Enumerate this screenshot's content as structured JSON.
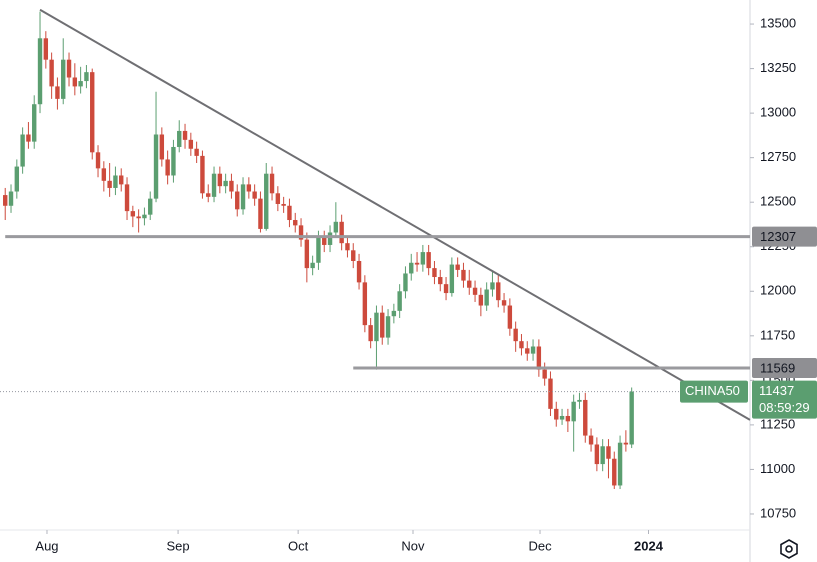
{
  "chart_data": {
    "type": "candlestick",
    "symbol": "CHINA50",
    "countdown": "08:59:29",
    "up_color": "#5b9e70",
    "down_color": "#cd4a3c",
    "open": [
      12540,
      12480,
      12560,
      12700,
      12880,
      12840,
      13050,
      13420,
      13300,
      13150,
      13080,
      13300,
      13200,
      13150,
      13180,
      13230,
      12780,
      12690,
      12620,
      12580,
      12650,
      12600,
      12450,
      12420,
      12410,
      12430,
      12520,
      12880,
      12740,
      12650,
      12810,
      12900,
      12850,
      12800,
      12760,
      12550,
      12530,
      12660,
      12590,
      12620,
      12560,
      12460,
      12600,
      12560,
      12520,
      12350,
      12660,
      12550,
      12490,
      12480,
      12400,
      12370,
      12290,
      12130,
      12160,
      12300,
      12260,
      12330,
      12390,
      12270,
      12230,
      12170,
      12050,
      11810,
      11720,
      11880,
      11740,
      11860,
      11890,
      12000,
      12100,
      12160,
      12150,
      12220,
      12130,
      12080,
      12040,
      11990,
      12150,
      12120,
      12060,
      12020,
      11980,
      11920,
      12010,
      12050,
      11950,
      11920,
      11790,
      11720,
      11680,
      11650,
      11690,
      11560,
      11510,
      11340,
      11280,
      11300,
      11270,
      11380,
      11390,
      11190,
      11140,
      11030,
      11130,
      11060,
      10910,
      11150,
      11140
    ],
    "high": [
      12580,
      12600,
      12740,
      12920,
      12950,
      13100,
      13570,
      13460,
      13340,
      13200,
      13420,
      13340,
      13280,
      13260,
      13270,
      13250,
      12820,
      12730,
      12720,
      12700,
      12690,
      12640,
      12480,
      12460,
      12470,
      12560,
      13120,
      12920,
      12790,
      12850,
      12960,
      12940,
      12890,
      12840,
      12790,
      12600,
      12700,
      12700,
      12660,
      12660,
      12600,
      12640,
      12640,
      12600,
      12560,
      12720,
      12700,
      12590,
      12530,
      12520,
      12440,
      12410,
      12330,
      12200,
      12340,
      12340,
      12370,
      12500,
      12430,
      12310,
      12270,
      12210,
      12090,
      11850,
      11920,
      11920,
      11900,
      11930,
      12040,
      12140,
      12210,
      12220,
      12260,
      12260,
      12170,
      12120,
      12080,
      12190,
      12190,
      12160,
      12120,
      12060,
      12020,
      12050,
      12110,
      12090,
      11990,
      11960,
      11830,
      11760,
      11720,
      11730,
      11730,
      11600,
      11550,
      11380,
      11340,
      11340,
      11420,
      11430,
      11430,
      11230,
      11180,
      11170,
      11170,
      11100,
      11190,
      11220,
      11460
    ],
    "low": [
      12400,
      12440,
      12520,
      12660,
      12800,
      12800,
      13000,
      13250,
      13080,
      13020,
      13050,
      13150,
      13100,
      13110,
      13140,
      12740,
      12640,
      12560,
      12530,
      12540,
      12560,
      12400,
      12360,
      12330,
      12370,
      12400,
      12500,
      12700,
      12600,
      12610,
      12780,
      12800,
      12760,
      12720,
      12520,
      12500,
      12500,
      12550,
      12550,
      12520,
      12420,
      12430,
      12520,
      12480,
      12330,
      12340,
      12510,
      12450,
      12440,
      12360,
      12330,
      12250,
      12050,
      12090,
      12120,
      12220,
      12220,
      12300,
      12230,
      12190,
      12130,
      12010,
      11770,
      11680,
      11560,
      11700,
      11700,
      11820,
      11850,
      11960,
      12060,
      12110,
      12110,
      12090,
      12040,
      12000,
      11950,
      11970,
      12080,
      12020,
      11980,
      11940,
      11860,
      11890,
      11970,
      11910,
      11880,
      11750,
      11660,
      11640,
      11610,
      11610,
      11520,
      11470,
      11300,
      11240,
      11250,
      11210,
      11100,
      11340,
      11150,
      11100,
      10990,
      10990,
      10950,
      10890,
      10890,
      11100,
      11120
    ],
    "close": [
      12480,
      12560,
      12700,
      12880,
      12840,
      13050,
      13420,
      13300,
      13150,
      13080,
      13300,
      13200,
      13150,
      13180,
      13230,
      12780,
      12690,
      12620,
      12580,
      12650,
      12600,
      12450,
      12420,
      12410,
      12430,
      12520,
      12880,
      12740,
      12650,
      12810,
      12900,
      12850,
      12800,
      12760,
      12550,
      12530,
      12660,
      12590,
      12620,
      12560,
      12460,
      12600,
      12560,
      12520,
      12350,
      12660,
      12550,
      12490,
      12480,
      12400,
      12370,
      12290,
      12130,
      12160,
      12300,
      12260,
      12330,
      12390,
      12270,
      12230,
      12170,
      12050,
      11810,
      11720,
      11880,
      11740,
      11860,
      11890,
      12000,
      12100,
      12160,
      12150,
      12220,
      12130,
      12080,
      12040,
      11990,
      12150,
      12120,
      12060,
      12020,
      11980,
      11920,
      12010,
      12050,
      11950,
      11920,
      11790,
      11720,
      11680,
      11650,
      11690,
      11560,
      11510,
      11340,
      11280,
      11300,
      11270,
      11380,
      11390,
      11190,
      11140,
      11030,
      11130,
      11060,
      10910,
      11150,
      11140,
      11437
    ],
    "levels": [
      {
        "value": 12307,
        "start": 0
      },
      {
        "value": 11569,
        "start": 60
      }
    ],
    "trendline": {
      "start": [
        6,
        13580
      ],
      "end": [
        128.4,
        11278
      ]
    },
    "xlim": [
      -0.9,
      128.4
    ],
    "ylim": [
      10660,
      13635
    ],
    "yticks": [
      10750,
      11000,
      11250,
      11500,
      11750,
      12000,
      12250,
      12500,
      12750,
      13000,
      13250,
      13500
    ],
    "xticks": [
      {
        "value": 7.2,
        "label": "Aug"
      },
      {
        "value": 29.8,
        "label": "Sep"
      },
      {
        "value": 50.5,
        "label": "Oct"
      },
      {
        "value": 70.3,
        "label": "Nov"
      },
      {
        "value": 92.2,
        "label": "Dec"
      },
      {
        "value": 110.9,
        "label": "2024"
      }
    ]
  }
}
